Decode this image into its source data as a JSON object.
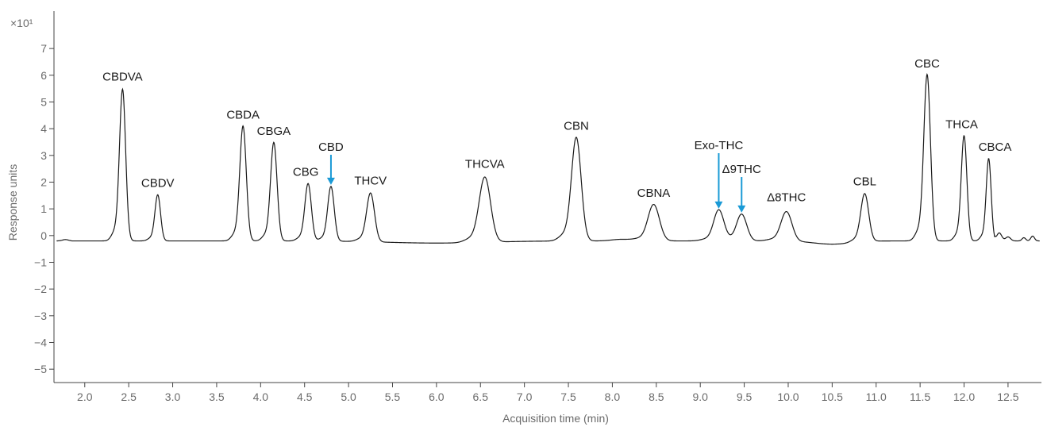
{
  "chart_data": {
    "type": "line",
    "title": "",
    "xlabel": "Acquisition time (min)",
    "ylabel": "Response units",
    "y_multiplier": "×10¹",
    "xlim": [
      1.65,
      12.88
    ],
    "ylim": [
      -5.5,
      8.4
    ],
    "x_ticks": [
      2.0,
      2.5,
      3.0,
      3.5,
      4.0,
      4.5,
      5.0,
      5.5,
      6.0,
      6.5,
      7.0,
      7.5,
      8.0,
      8.5,
      9.0,
      9.5,
      10.0,
      10.5,
      11.0,
      11.5,
      12.0,
      12.5
    ],
    "x_tick_labels": [
      "2.0",
      "2.5",
      "3.0",
      "3.5",
      "4.0",
      "4.5",
      "5.0",
      "5.5",
      "6.0",
      "6.5",
      "7.0",
      "7.5",
      "8.0",
      "8.5",
      "9.0",
      "9.5",
      "10.0",
      "10.5",
      "11.0",
      "11.5",
      "12.0",
      "12.5"
    ],
    "y_ticks": [
      -5,
      -4,
      -3,
      -2,
      -1,
      0,
      1,
      2,
      3,
      4,
      5,
      6,
      7
    ],
    "y_tick_labels": [
      "−5",
      "−4",
      "−3",
      "−2",
      "−1",
      "0",
      "1",
      "2",
      "3",
      "4",
      "5",
      "6",
      "7"
    ],
    "grid": false,
    "line_color": "#1a1a1a",
    "arrow_color": "#1a9ad6",
    "series": [
      {
        "peaks": [
          {
            "label": "CBDVA",
            "x": 2.43,
            "height": 5.65,
            "width": 0.035
          },
          {
            "label": "CBDV",
            "x": 2.83,
            "height": 1.72,
            "width": 0.032
          },
          {
            "label": "CBDA",
            "x": 3.8,
            "height": 4.28,
            "width": 0.037
          },
          {
            "label": "CBGA",
            "x": 4.15,
            "height": 3.67,
            "width": 0.037
          },
          {
            "label": "CBG",
            "x": 4.54,
            "height": 2.14,
            "width": 0.037
          },
          {
            "label": "CBD",
            "x": 4.8,
            "height": 2.04,
            "width": 0.037,
            "arrow": true
          },
          {
            "label": "THCV",
            "x": 5.25,
            "height": 1.82,
            "width": 0.045
          },
          {
            "label": "THCVA",
            "x": 6.55,
            "height": 2.43,
            "width": 0.065
          },
          {
            "label": "CBN",
            "x": 7.59,
            "height": 3.86,
            "width": 0.055
          },
          {
            "label": "CBNA",
            "x": 8.47,
            "height": 1.36,
            "width": 0.065
          },
          {
            "label": "Exo-THC",
            "x": 9.21,
            "height": 1.15,
            "width": 0.058,
            "arrow": true
          },
          {
            "label": "Δ9THC",
            "x": 9.47,
            "height": 1.0,
            "width": 0.058,
            "arrow": true
          },
          {
            "label": "Δ8THC",
            "x": 9.98,
            "height": 1.1,
            "width": 0.062
          },
          {
            "label": "CBL",
            "x": 10.87,
            "height": 1.79,
            "width": 0.045
          },
          {
            "label": "CBC",
            "x": 11.58,
            "height": 6.2,
            "width": 0.038
          },
          {
            "label": "THCA",
            "x": 12.0,
            "height": 3.92,
            "width": 0.032
          },
          {
            "label": "CBCA",
            "x": 12.28,
            "height": 3.07,
            "width": 0.028
          }
        ]
      }
    ]
  }
}
